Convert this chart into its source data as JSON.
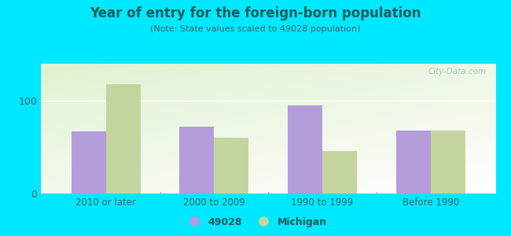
{
  "title": "Year of entry for the foreign-born population",
  "subtitle": "(Note: State values scaled to 49028 population)",
  "categories": [
    "2010 or later",
    "2000 to 2009",
    "1990 to 1999",
    "Before 1990"
  ],
  "values_49028": [
    67,
    72,
    95,
    68
  ],
  "values_michigan": [
    118,
    60,
    46,
    68
  ],
  "color_49028": "#b39ddb",
  "color_michigan": "#c5d5a0",
  "background_outer": "#00e8ff",
  "ylim": [
    0,
    140
  ],
  "yticks": [
    0,
    100
  ],
  "bar_width": 0.32,
  "legend_label_49028": "49028",
  "legend_label_michigan": "Michigan",
  "watermark": "City-Data.com",
  "title_color": "#1a5a5a",
  "subtitle_color": "#336666",
  "tick_label_color": "#336666",
  "axis_label_color": "#336666"
}
